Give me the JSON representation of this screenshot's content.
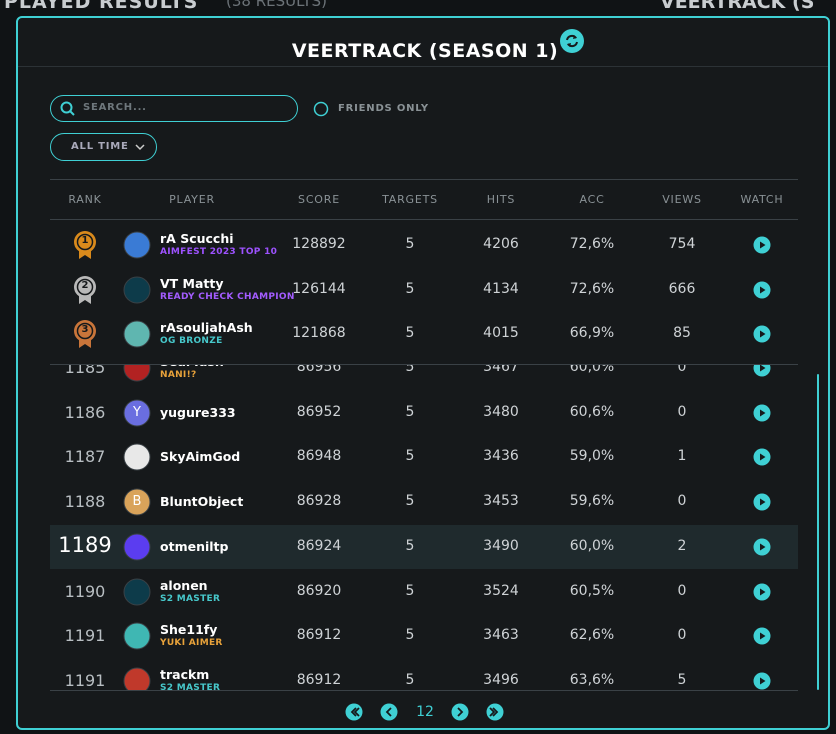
{
  "background": {
    "title": "PLAYED RESULTS",
    "count": "(38 RESULTS)",
    "right_title": "VEERTRACK (S"
  },
  "modal": {
    "title": "VEERTRACK (SEASON 1)",
    "search_placeholder": "SEARCH...",
    "friends_only": "FRIENDS ONLY",
    "time_filter": "ALL TIME"
  },
  "table": {
    "headers": [
      "RANK",
      "PLAYER",
      "SCORE",
      "TARGETS",
      "HITS",
      "ACC",
      "VIEWS",
      "WATCH"
    ],
    "top_rows": [
      {
        "medal": "1",
        "medal_color": "#d98a1c",
        "avatar_color": "#3a7bd5",
        "name": "rA Scucchi",
        "tag": "AIMFEST 2023 TOP 10",
        "tag_color": "#9d52ff",
        "score": 128892,
        "targets": 5,
        "hits": 4206,
        "acc": "72,6%",
        "views": 754
      },
      {
        "medal": "2",
        "medal_color": "#b9b9b9",
        "avatar_color": "#0d3b4a",
        "name": "VT Matty",
        "tag": "READY CHECK CHAMPION",
        "tag_color": "#a35cff",
        "score": 126144,
        "targets": 5,
        "hits": 4134,
        "acc": "72,6%",
        "views": 666
      },
      {
        "medal": "3",
        "medal_color": "#c9753a",
        "avatar_color": "#5fb6b0",
        "name": "rAsouljahAsh",
        "tag": "OG BRONZE",
        "tag_color": "#47c8cb",
        "score": 121868,
        "targets": 5,
        "hits": 4015,
        "acc": "66,9%",
        "views": 85
      }
    ],
    "rows": [
      {
        "rank": 1185,
        "avatar_color": "#b22222",
        "name": "SearTash",
        "tag": "NANI!?",
        "tag_color": "#e8a23a",
        "score": 86956,
        "targets": 5,
        "hits": 3467,
        "acc": "60,0%",
        "views": 0
      },
      {
        "rank": 1186,
        "avatar": "Y",
        "avatar_color": "#6a6ee0",
        "name": "yugure333",
        "score": 86952,
        "targets": 5,
        "hits": 3480,
        "acc": "60,6%",
        "views": 0
      },
      {
        "rank": 1187,
        "avatar_color": "#e8e8e8",
        "name": "SkyAimGod",
        "score": 86948,
        "targets": 5,
        "hits": 3436,
        "acc": "59,0%",
        "views": 1
      },
      {
        "rank": 1188,
        "avatar": "B",
        "avatar_color": "#d9a35a",
        "name": "BluntObject",
        "score": 86928,
        "targets": 5,
        "hits": 3453,
        "acc": "59,6%",
        "views": 0
      },
      {
        "rank": 1189,
        "current": true,
        "avatar_color": "#5b3df0",
        "name": "otmeniltp",
        "score": 86924,
        "targets": 5,
        "hits": 3490,
        "acc": "60,0%",
        "views": 2
      },
      {
        "rank": 1190,
        "avatar_color": "#0d3b4a",
        "name": "alonen",
        "tag": "S2 MASTER",
        "tag_color": "#47c8cb",
        "score": 86920,
        "targets": 5,
        "hits": 3524,
        "acc": "60,5%",
        "views": 0
      },
      {
        "rank": 1191,
        "avatar_color": "#3fb7b3",
        "name": "She11fy",
        "tag": "YUKI AIMER",
        "tag_color": "#e8a23a",
        "score": 86912,
        "targets": 5,
        "hits": 3463,
        "acc": "62,6%",
        "views": 0
      },
      {
        "rank": 1191,
        "avatar_color": "#c0392b",
        "name": "trackm",
        "tag": "S2 MASTER",
        "tag_color": "#47c8cb",
        "score": 86912,
        "targets": 5,
        "hits": 3496,
        "acc": "63,6%",
        "views": 5
      }
    ]
  },
  "pagination": {
    "page": "12"
  }
}
